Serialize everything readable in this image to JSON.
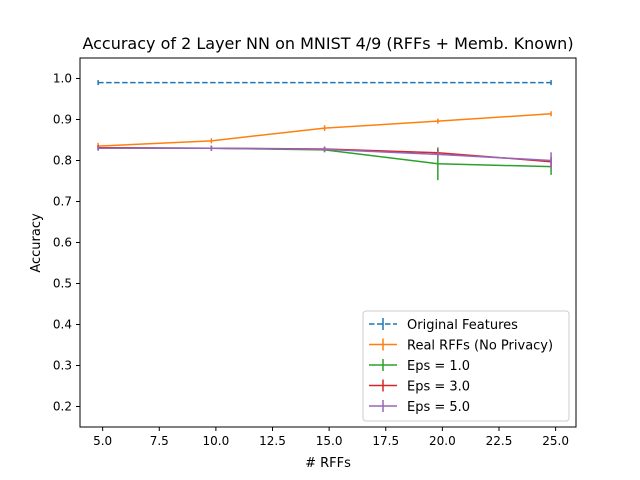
{
  "chart_data": {
    "type": "line",
    "title": "Accuracy of 2 Layer NN on MNIST 4/9 (RFFs + Memb. Known)",
    "xlabel": "# RFFs",
    "ylabel": "Accuracy",
    "xlim": [
      4.0,
      25.9
    ],
    "ylim": [
      0.15,
      1.05
    ],
    "xticks": [
      5.0,
      7.5,
      10.0,
      12.5,
      15.0,
      17.5,
      20.0,
      22.5,
      25.0
    ],
    "xtick_labels": [
      "5.0",
      "7.5",
      "10.0",
      "12.5",
      "15.0",
      "17.5",
      "20.0",
      "22.5",
      "25.0"
    ],
    "yticks": [
      0.2,
      0.3,
      0.4,
      0.5,
      0.6,
      0.7,
      0.8,
      0.9,
      1.0
    ],
    "ytick_labels": [
      "0.2",
      "0.3",
      "0.4",
      "0.5",
      "0.6",
      "0.7",
      "0.8",
      "0.9",
      "1.0"
    ],
    "grid": false,
    "legend_position": "bottom-right",
    "series": [
      {
        "name": "Original Features",
        "color": "#1f77b4",
        "dashed": true,
        "x": [
          4.8,
          24.8
        ],
        "y": [
          0.99,
          0.99
        ],
        "err": [
          0,
          0
        ]
      },
      {
        "name": "Real RFFs (No Privacy)",
        "color": "#ff7f0e",
        "dashed": false,
        "x": [
          4.8,
          9.8,
          14.8,
          19.8,
          24.8
        ],
        "y": [
          0.835,
          0.848,
          0.879,
          0.896,
          0.914
        ],
        "err": [
          0.008,
          0.006,
          0.007,
          0.004,
          0.004
        ]
      },
      {
        "name": "Eps = 1.0",
        "color": "#2ca02c",
        "dashed": false,
        "x": [
          4.8,
          9.8,
          14.8,
          19.8,
          24.8
        ],
        "y": [
          0.831,
          0.83,
          0.826,
          0.792,
          0.785
        ],
        "err": [
          0.003,
          0.003,
          0.005,
          0.04,
          0.02
        ]
      },
      {
        "name": "Eps = 3.0",
        "color": "#d62728",
        "dashed": false,
        "x": [
          4.8,
          9.8,
          14.8,
          19.8,
          24.8
        ],
        "y": [
          0.831,
          0.83,
          0.828,
          0.819,
          0.797
        ],
        "err": [
          0.002,
          0.002,
          0.003,
          0.008,
          0.012
        ]
      },
      {
        "name": "Eps = 5.0",
        "color": "#9467bd",
        "dashed": false,
        "x": [
          4.8,
          9.8,
          14.8,
          19.8,
          24.8
        ],
        "y": [
          0.83,
          0.83,
          0.827,
          0.815,
          0.8
        ],
        "err": [
          0.002,
          0.002,
          0.003,
          0.008,
          0.02
        ]
      }
    ]
  }
}
